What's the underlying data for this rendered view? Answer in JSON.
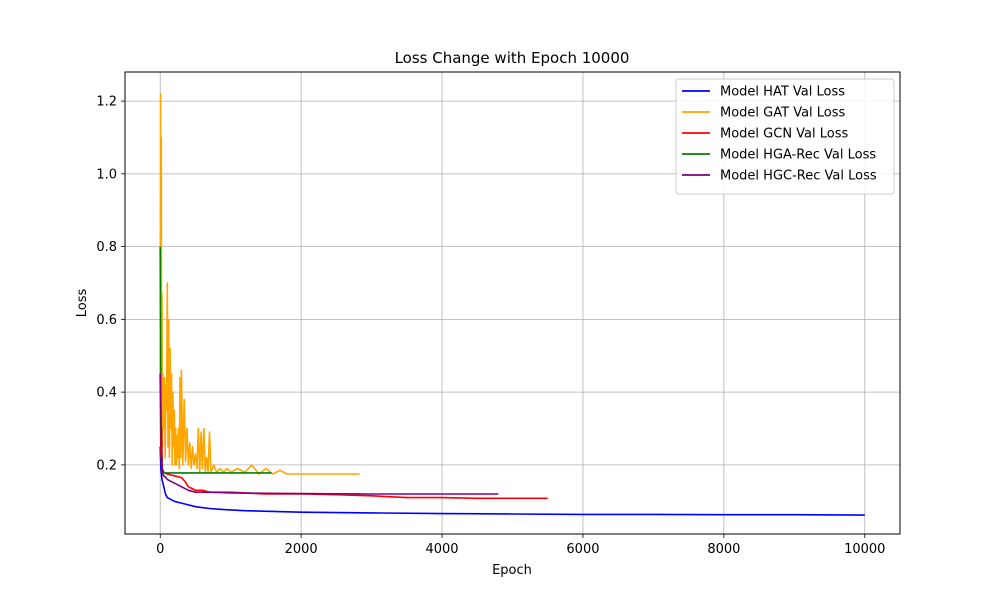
{
  "chart_data": {
    "type": "line",
    "title": "Loss Change with Epoch 10000",
    "xlabel": "Epoch",
    "ylabel": "Loss",
    "xlim": [
      -500,
      10500
    ],
    "ylim": [
      0.01,
      1.28
    ],
    "xticks": [
      0,
      2000,
      4000,
      6000,
      8000,
      10000
    ],
    "xtick_labels": [
      "0",
      "2000",
      "4000",
      "6000",
      "8000",
      "10000"
    ],
    "yticks": [
      0.2,
      0.4,
      0.6,
      0.8,
      1.0,
      1.2
    ],
    "ytick_labels": [
      "0.2",
      "0.4",
      "0.6",
      "0.8",
      "1.0",
      "1.2"
    ],
    "grid": true,
    "legend_position": "top-right",
    "series": [
      {
        "name": "Model HAT Val Loss",
        "color": "#0000ff",
        "x": [
          0,
          10,
          25,
          50,
          75,
          100,
          150,
          200,
          300,
          400,
          500,
          700,
          900,
          1200,
          1600,
          2000,
          3000,
          4000,
          5000,
          6000,
          7000,
          8000,
          9000,
          10000
        ],
        "y": [
          0.25,
          0.19,
          0.16,
          0.14,
          0.12,
          0.11,
          0.105,
          0.1,
          0.095,
          0.09,
          0.085,
          0.08,
          0.077,
          0.074,
          0.072,
          0.07,
          0.068,
          0.066,
          0.065,
          0.064,
          0.064,
          0.063,
          0.063,
          0.062
        ]
      },
      {
        "name": "Model GAT Val Loss",
        "color": "#ffa500",
        "x": [
          0,
          5,
          10,
          15,
          20,
          25,
          30,
          40,
          50,
          60,
          70,
          80,
          90,
          100,
          110,
          120,
          130,
          140,
          150,
          160,
          170,
          180,
          190,
          200,
          210,
          220,
          230,
          240,
          250,
          260,
          270,
          280,
          290,
          300,
          320,
          340,
          360,
          380,
          400,
          420,
          440,
          460,
          480,
          500,
          520,
          540,
          560,
          580,
          600,
          620,
          640,
          660,
          680,
          700,
          720,
          760,
          800,
          850,
          900,
          950,
          1000,
          1100,
          1200,
          1300,
          1400,
          1500,
          1600,
          1700,
          1800,
          2000,
          2200,
          2400,
          2600,
          2830
        ],
        "y": [
          0.4,
          1.22,
          0.35,
          1.1,
          0.3,
          0.67,
          0.25,
          0.45,
          0.3,
          0.44,
          0.22,
          0.42,
          0.35,
          0.7,
          0.25,
          0.6,
          0.22,
          0.52,
          0.3,
          0.45,
          0.2,
          0.4,
          0.25,
          0.35,
          0.2,
          0.3,
          0.2,
          0.28,
          0.22,
          0.3,
          0.19,
          0.44,
          0.22,
          0.46,
          0.2,
          0.38,
          0.21,
          0.3,
          0.2,
          0.26,
          0.19,
          0.25,
          0.2,
          0.23,
          0.19,
          0.3,
          0.18,
          0.29,
          0.19,
          0.3,
          0.18,
          0.22,
          0.18,
          0.29,
          0.18,
          0.2,
          0.18,
          0.19,
          0.18,
          0.19,
          0.18,
          0.19,
          0.18,
          0.2,
          0.175,
          0.19,
          0.175,
          0.185,
          0.175,
          0.175,
          0.175,
          0.175,
          0.175,
          0.175
        ]
      },
      {
        "name": "Model GCN Val Loss",
        "color": "#ff0000",
        "x": [
          0,
          10,
          20,
          30,
          50,
          100,
          200,
          300,
          350,
          400,
          450,
          500,
          600,
          700,
          800,
          1000,
          1500,
          2000,
          2500,
          3000,
          3500,
          4000,
          4500,
          5000,
          5500
        ],
        "y": [
          0.45,
          0.22,
          0.3,
          0.19,
          0.18,
          0.175,
          0.17,
          0.165,
          0.155,
          0.14,
          0.135,
          0.13,
          0.13,
          0.125,
          0.125,
          0.125,
          0.12,
          0.12,
          0.118,
          0.115,
          0.11,
          0.11,
          0.108,
          0.108,
          0.108
        ]
      },
      {
        "name": "Model HGA-Rec Val Loss",
        "color": "#008000",
        "x": [
          0,
          5,
          10,
          20,
          30,
          50,
          100,
          200,
          400,
          600,
          800,
          1000,
          1200,
          1400,
          1580
        ],
        "y": [
          0.8,
          0.55,
          0.3,
          0.2,
          0.18,
          0.178,
          0.178,
          0.178,
          0.178,
          0.178,
          0.178,
          0.178,
          0.178,
          0.178,
          0.178
        ]
      },
      {
        "name": "Model HGC-Rec Val Loss",
        "color": "#800080",
        "x": [
          0,
          10,
          20,
          30,
          50,
          80,
          100,
          150,
          200,
          300,
          400,
          500,
          700,
          1000,
          1500,
          2000,
          3000,
          4000,
          4800
        ],
        "y": [
          0.45,
          0.35,
          0.2,
          0.18,
          0.17,
          0.165,
          0.16,
          0.155,
          0.15,
          0.14,
          0.13,
          0.125,
          0.125,
          0.123,
          0.122,
          0.121,
          0.12,
          0.12,
          0.12
        ]
      }
    ]
  }
}
